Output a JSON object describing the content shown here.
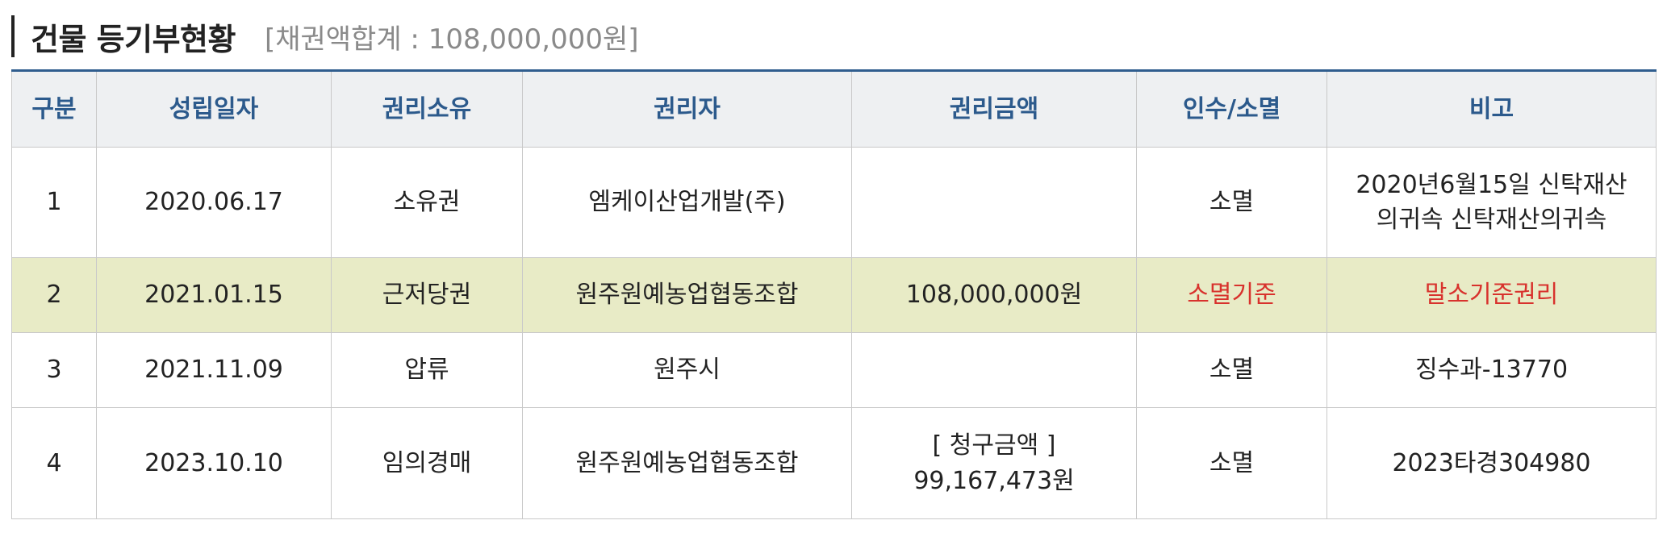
{
  "header": {
    "title": "건물 등기부현황",
    "total": "[채권액합계 : 108,000,000원]"
  },
  "columns": [
    "구분",
    "성립일자",
    "권리소유",
    "권리자",
    "권리금액",
    "인수/소멸",
    "비고"
  ],
  "rows": [
    {
      "no": "1",
      "date": "2020.06.17",
      "right_type": "소유권",
      "holder": "엠케이산업개발(주)",
      "amount_line1": "",
      "amount_line2": "",
      "status": "소멸",
      "note_line1": "2020년6월15일 신탁재산",
      "note_line2": "의귀속 신탁재산의귀속"
    },
    {
      "no": "2",
      "date": "2021.01.15",
      "right_type": "근저당권",
      "holder": "원주원예농업협동조합",
      "amount_line1": "108,000,000원",
      "amount_line2": "",
      "status": "소멸기준",
      "note_line1": "말소기준권리",
      "note_line2": ""
    },
    {
      "no": "3",
      "date": "2021.11.09",
      "right_type": "압류",
      "holder": "원주시",
      "amount_line1": "",
      "amount_line2": "",
      "status": "소멸",
      "note_line1": "징수과-13770",
      "note_line2": ""
    },
    {
      "no": "4",
      "date": "2023.10.10",
      "right_type": "임의경매",
      "holder": "원주원예농업협동조합",
      "amount_line1": "[ 청구금액 ]",
      "amount_line2": "99,167,473원",
      "status": "소멸",
      "note_line1": "2023타경304980",
      "note_line2": ""
    }
  ],
  "colors": {
    "header_accent": "#2c5a8c",
    "highlight_row": "#e8ebc6",
    "alert_text": "#d8322d"
  }
}
